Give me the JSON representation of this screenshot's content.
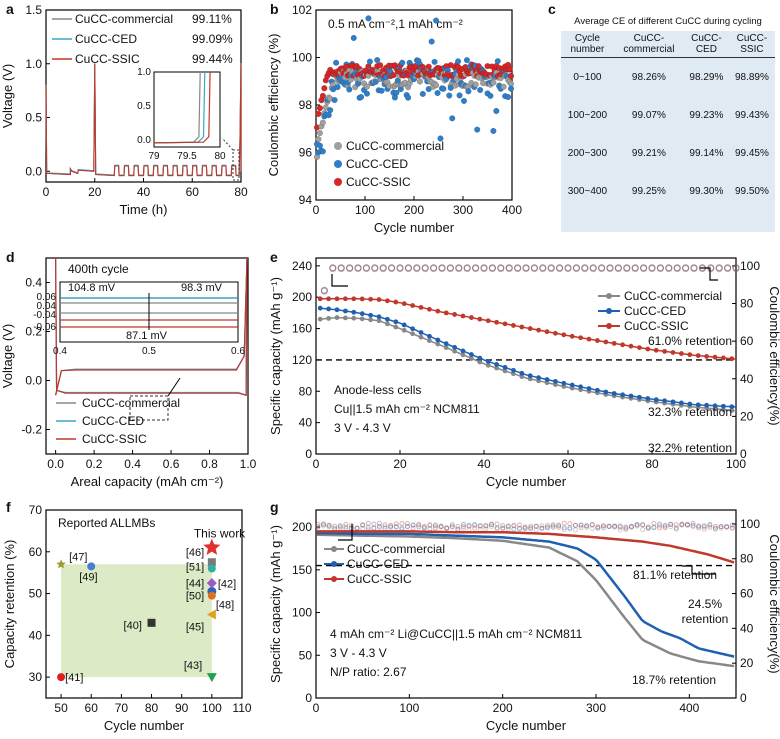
{
  "panel_letters": [
    "a",
    "b",
    "c",
    "d",
    "e",
    "f",
    "g"
  ],
  "chart_data": [
    {
      "id": "a",
      "type": "line",
      "xlabel": "Time (h)",
      "ylabel": "Voltage (V)",
      "xlim": [
        0,
        80
      ],
      "ylim": [
        -0.1,
        1.5
      ],
      "xticks": [
        "0",
        "20",
        "40",
        "60",
        "80"
      ],
      "yticks": [
        "0.0",
        "0.5",
        "1.0",
        "1.5"
      ],
      "series": [
        {
          "name": "CuCC-commercial",
          "ce": "99.11%",
          "color": "#888888"
        },
        {
          "name": "CuCC-CED",
          "ce": "99.09%",
          "color": "#3aa6c9"
        },
        {
          "name": "CuCC-SSIC",
          "ce": "99.44%",
          "color": "#c0392b"
        }
      ],
      "inset": {
        "xticks": [
          "79",
          "79.5",
          "80"
        ],
        "yticks": [
          "0.0",
          "0.5",
          "1.0"
        ],
        "xlim": [
          79,
          80
        ],
        "ylim": [
          -0.1,
          1.0
        ]
      }
    },
    {
      "id": "b",
      "type": "scatter",
      "title": "0.5 mA cm⁻²,1 mAh cm⁻²",
      "xlabel": "Cycle number",
      "ylabel": "Coulombic efficiency (%)",
      "xlim": [
        0,
        400
      ],
      "ylim": [
        94,
        102
      ],
      "xticks": [
        "0",
        "100",
        "200",
        "300",
        "400"
      ],
      "yticks": [
        "94",
        "96",
        "98",
        "100",
        "102"
      ],
      "series": [
        {
          "name": "CuCC-commercial",
          "color": "#a0a0a0"
        },
        {
          "name": "CuCC-CED",
          "color": "#2f7fc8"
        },
        {
          "name": "CuCC-SSIC",
          "color": "#d62728"
        }
      ]
    },
    {
      "id": "c",
      "type": "table",
      "title": "Average CE of different CuCC during cycling",
      "columns": [
        "Cycle number",
        "CuCC-commercial",
        "CuCC-CED",
        "CuCC-SSIC"
      ],
      "rows": [
        [
          "0~100",
          "98.26%",
          "98.29%",
          "98.89%"
        ],
        [
          "100~200",
          "99.07%",
          "99.23%",
          "99.43%"
        ],
        [
          "200~300",
          "99.21%",
          "99.14%",
          "99.45%"
        ],
        [
          "300~400",
          "99.25%",
          "99.30%",
          "99.50%"
        ]
      ]
    },
    {
      "id": "d",
      "type": "line",
      "xlabel": "Areal capacity (mAh cm⁻²)",
      "ylabel": "Voltage (V)",
      "xlim": [
        -0.05,
        1.0
      ],
      "ylim": [
        -0.3,
        0.5
      ],
      "xticks": [
        "0.0",
        "0.2",
        "0.4",
        "0.6",
        "0.8",
        "1.0"
      ],
      "yticks": [
        "-0.2",
        "0.0",
        "0.2",
        "0.4"
      ],
      "annotation": "400th cycle",
      "series": [
        {
          "name": "CuCC-commercial",
          "color": "#888888"
        },
        {
          "name": "CuCC-CED",
          "color": "#3aa6c9"
        },
        {
          "name": "CuCC-SSIC",
          "color": "#c0392b"
        }
      ],
      "inset": {
        "xticks": [
          "0.4",
          "0.5",
          "0.6"
        ],
        "yticks": [
          "0.06",
          "0.04",
          "-0.04",
          "-0.06"
        ],
        "labels": [
          {
            "text": "104.8 mV",
            "color": "#888888"
          },
          {
            "text": "98.3 mV",
            "color": "#1b8fb8"
          },
          {
            "text": "87.1 mV",
            "color": "#c0392b"
          }
        ]
      }
    },
    {
      "id": "e",
      "type": "line",
      "xlabel": "Cycle number",
      "ylabel": "Specific capacity (mAh g⁻¹)",
      "ylabel_right": "Coulombic efficiency(%)",
      "xlim": [
        0,
        100
      ],
      "ylim": [
        0,
        250
      ],
      "ylim_right": [
        0,
        104.2
      ],
      "xticks": [
        "0",
        "20",
        "40",
        "60",
        "80",
        "100"
      ],
      "yticks": [
        "0",
        "40",
        "80",
        "120",
        "160",
        "200",
        "240"
      ],
      "yticks_right": [
        "0",
        "20",
        "40",
        "60",
        "80",
        "100"
      ],
      "retention_line": 120,
      "notes": [
        "Anode-less cells",
        "Cu||1.5 mAh cm⁻² NCM811",
        "3 V - 4.3 V"
      ],
      "series": [
        {
          "name": "CuCC-commercial",
          "color": "#888888",
          "retention": "32.2% retention",
          "capacity": [
            [
              1,
              172
            ],
            [
              5,
              174
            ],
            [
              10,
              173
            ],
            [
              15,
              170
            ],
            [
              20,
              160
            ],
            [
              30,
              138
            ],
            [
              40,
              115
            ],
            [
              50,
              97
            ],
            [
              60,
              85
            ],
            [
              70,
              75
            ],
            [
              80,
              67
            ],
            [
              90,
              60
            ],
            [
              100,
              55
            ]
          ]
        },
        {
          "name": "CuCC-CED",
          "color": "#2060b0",
          "retention": "32.3% retention",
          "capacity": [
            [
              1,
              186
            ],
            [
              5,
              184
            ],
            [
              10,
              180
            ],
            [
              15,
              175
            ],
            [
              20,
              167
            ],
            [
              30,
              143
            ],
            [
              40,
              120
            ],
            [
              50,
              101
            ],
            [
              60,
              89
            ],
            [
              70,
              78
            ],
            [
              80,
              70
            ],
            [
              90,
              63
            ],
            [
              100,
              60
            ]
          ]
        },
        {
          "name": "CuCC-SSIC",
          "color": "#c0392b",
          "retention": "61.0% retention",
          "capacity": [
            [
              1,
              198
            ],
            [
              5,
              198
            ],
            [
              10,
              198
            ],
            [
              15,
              197
            ],
            [
              20,
              193
            ],
            [
              30,
              181
            ],
            [
              40,
              171
            ],
            [
              50,
              161
            ],
            [
              60,
              151
            ],
            [
              70,
              142
            ],
            [
              80,
              133
            ],
            [
              90,
              126
            ],
            [
              100,
              121
            ]
          ]
        }
      ]
    },
    {
      "id": "f",
      "type": "scatter",
      "title": "Reported ALLMBs",
      "xlabel": "Cycle number",
      "ylabel": "Capacity retention (%)",
      "xlim": [
        45,
        110
      ],
      "ylim": [
        25,
        70
      ],
      "xticks": [
        "50",
        "60",
        "70",
        "80",
        "90",
        "100",
        "110"
      ],
      "yticks": [
        "30",
        "40",
        "50",
        "60",
        "70"
      ],
      "points": [
        {
          "label": "[47]",
          "x": 50,
          "y": 57,
          "color": "#9a9a2a",
          "shape": "star"
        },
        {
          "label": "[49]",
          "x": 60,
          "y": 56.5,
          "color": "#4a7fd0",
          "shape": "circle"
        },
        {
          "label": "[46]",
          "x": 100,
          "y": 57.5,
          "color": "#7a7a7a",
          "shape": "square"
        },
        {
          "label": "[51]",
          "x": 100,
          "y": 56,
          "color": "#30b0a0",
          "shape": "circle"
        },
        {
          "label": "[44]",
          "x": 100,
          "y": 52.5,
          "color": "#9a5ac8",
          "shape": "diamond"
        },
        {
          "label": "[42]",
          "x": 100,
          "y": 50.5,
          "color": "#3060c0",
          "shape": "hexagon"
        },
        {
          "label": "[50]",
          "x": 100,
          "y": 49.5,
          "color": "#e0701a",
          "shape": "circle"
        },
        {
          "label": "[48]",
          "x": 100,
          "y": 45,
          "color": "#e0a020",
          "shape": "triangle-left"
        },
        {
          "label": "[45]",
          "x": 100,
          "y": 44,
          "color": "#c8a020",
          "shape": "none"
        },
        {
          "label": "[40]",
          "x": 80,
          "y": 43,
          "color": "#333333",
          "shape": "square"
        },
        {
          "label": "[41]",
          "x": 50,
          "y": 30,
          "color": "#e02020",
          "shape": "circle"
        },
        {
          "label": "[43]",
          "x": 100,
          "y": 30,
          "color": "#20a050",
          "shape": "triangle-down"
        },
        {
          "label": "This work",
          "x": 100,
          "y": 61,
          "color": "#e03030",
          "shape": "star"
        }
      ]
    },
    {
      "id": "g",
      "type": "line",
      "xlabel": "Cycle number",
      "ylabel": "Specific capacity (mAh g⁻¹)",
      "ylabel_right": "Coulombic efficiency(%)",
      "xlim": [
        0,
        450
      ],
      "ylim": [
        0,
        220
      ],
      "ylim_right": [
        0,
        108
      ],
      "xticks": [
        "0",
        "100",
        "200",
        "300",
        "400"
      ],
      "yticks": [
        "0",
        "50",
        "100",
        "150",
        "200"
      ],
      "yticks_right": [
        "0",
        "20",
        "40",
        "60",
        "80",
        "100"
      ],
      "retention_line": 155,
      "notes": [
        "4 mAh cm⁻² Li@CuCC||1.5 mAh cm⁻² NCM811",
        "3 V - 4.3 V",
        "N/P ratio: 2.67"
      ],
      "series": [
        {
          "name": "CuCC-commercial",
          "color": "#888888",
          "retention": "18.7% retention",
          "capacity": [
            [
              1,
              191
            ],
            [
              50,
              190
            ],
            [
              100,
              189
            ],
            [
              150,
              187
            ],
            [
              200,
              184
            ],
            [
              250,
              176
            ],
            [
              280,
              160
            ],
            [
              300,
              138
            ],
            [
              330,
              95
            ],
            [
              350,
              68
            ],
            [
              380,
              52
            ],
            [
              410,
              43
            ],
            [
              450,
              37
            ]
          ]
        },
        {
          "name": "CuCC-CED",
          "color": "#2060b0",
          "retention": "24.5%\nretention",
          "capacity": [
            [
              1,
              193
            ],
            [
              50,
              192
            ],
            [
              100,
              192
            ],
            [
              150,
              190
            ],
            [
              200,
              188
            ],
            [
              250,
              183
            ],
            [
              280,
              175
            ],
            [
              300,
              162
            ],
            [
              330,
              120
            ],
            [
              350,
              90
            ],
            [
              370,
              78
            ],
            [
              390,
              70
            ],
            [
              410,
              58
            ],
            [
              450,
              48
            ]
          ]
        },
        {
          "name": "CuCC-SSIC",
          "color": "#c0392b",
          "retention": "81.1% retention",
          "capacity": [
            [
              1,
              195
            ],
            [
              50,
              195
            ],
            [
              100,
              195
            ],
            [
              150,
              194
            ],
            [
              200,
              194
            ],
            [
              250,
              192
            ],
            [
              300,
              188
            ],
            [
              350,
              183
            ],
            [
              380,
              178
            ],
            [
              400,
              173
            ],
            [
              420,
              168
            ],
            [
              450,
              158
            ]
          ]
        }
      ]
    }
  ]
}
